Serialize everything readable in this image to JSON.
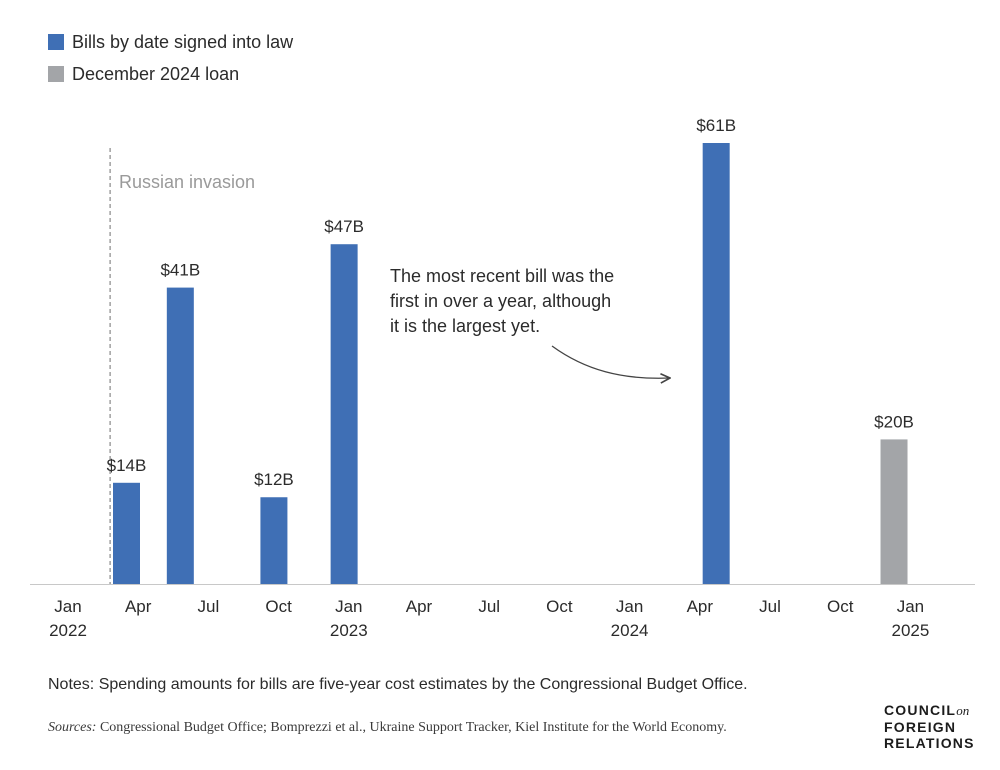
{
  "legend": [
    {
      "label": "Bills by date signed into law",
      "color": "#3f6fb5"
    },
    {
      "label": "December 2024 loan",
      "color": "#a3a5a8"
    }
  ],
  "annotation": {
    "invasion_label": "Russian invasion",
    "callout_lines": [
      "The most recent bill was the",
      "first in over a year, although",
      "it is the largest yet."
    ]
  },
  "chart_data": {
    "type": "bar",
    "title": "",
    "xlabel": "",
    "ylabel": "",
    "x_axis": {
      "range": [
        "2022-01",
        "2025-04"
      ],
      "ticks": [
        {
          "month": 0,
          "label": "Jan",
          "year": "2022"
        },
        {
          "month": 3,
          "label": "Apr",
          "year": ""
        },
        {
          "month": 6,
          "label": "Jul",
          "year": ""
        },
        {
          "month": 9,
          "label": "Oct",
          "year": ""
        },
        {
          "month": 12,
          "label": "Jan",
          "year": "2023"
        },
        {
          "month": 15,
          "label": "Apr",
          "year": ""
        },
        {
          "month": 18,
          "label": "Jul",
          "year": ""
        },
        {
          "month": 21,
          "label": "Oct",
          "year": ""
        },
        {
          "month": 24,
          "label": "Jan",
          "year": "2024"
        },
        {
          "month": 27,
          "label": "Apr",
          "year": ""
        },
        {
          "month": 30,
          "label": "Jul",
          "year": ""
        },
        {
          "month": 33,
          "label": "Oct",
          "year": ""
        },
        {
          "month": 36,
          "label": "Jan",
          "year": "2025"
        }
      ]
    },
    "ylim": [
      0,
      65
    ],
    "grid": false,
    "legend_position": "top-left",
    "series": [
      {
        "name": "Bills by date signed into law",
        "color": "#3f6fb5",
        "points": [
          {
            "date": "2022-03",
            "month": 2.5,
            "value": 14,
            "label": "$14B"
          },
          {
            "date": "2022-05",
            "month": 4.8,
            "value": 41,
            "label": "$41B"
          },
          {
            "date": "2022-09",
            "month": 8.8,
            "value": 12,
            "label": "$12B"
          },
          {
            "date": "2022-12",
            "month": 11.8,
            "value": 47,
            "label": "$47B"
          },
          {
            "date": "2024-04",
            "month": 27.7,
            "value": 61,
            "label": "$61B"
          }
        ]
      },
      {
        "name": "December 2024 loan",
        "color": "#a3a5a8",
        "points": [
          {
            "date": "2024-12",
            "month": 35.3,
            "value": 20,
            "label": "$20B"
          }
        ]
      }
    ],
    "reference_line": {
      "date": "2022-02",
      "month": 1.8,
      "label": "Russian invasion"
    }
  },
  "footer": {
    "notes": "Notes: Spending amounts for bills are five-year cost estimates by the Congressional Budget Office.",
    "sources_label": "Sources:",
    "sources_text": " Congressional Budget Office; Bomprezzi et al., Ukraine Support Tracker, Kiel Institute for the World Economy.",
    "logo": {
      "line1": "COUNCIL",
      "on": "on",
      "line2": "FOREIGN",
      "line3": "RELATIONS"
    }
  }
}
